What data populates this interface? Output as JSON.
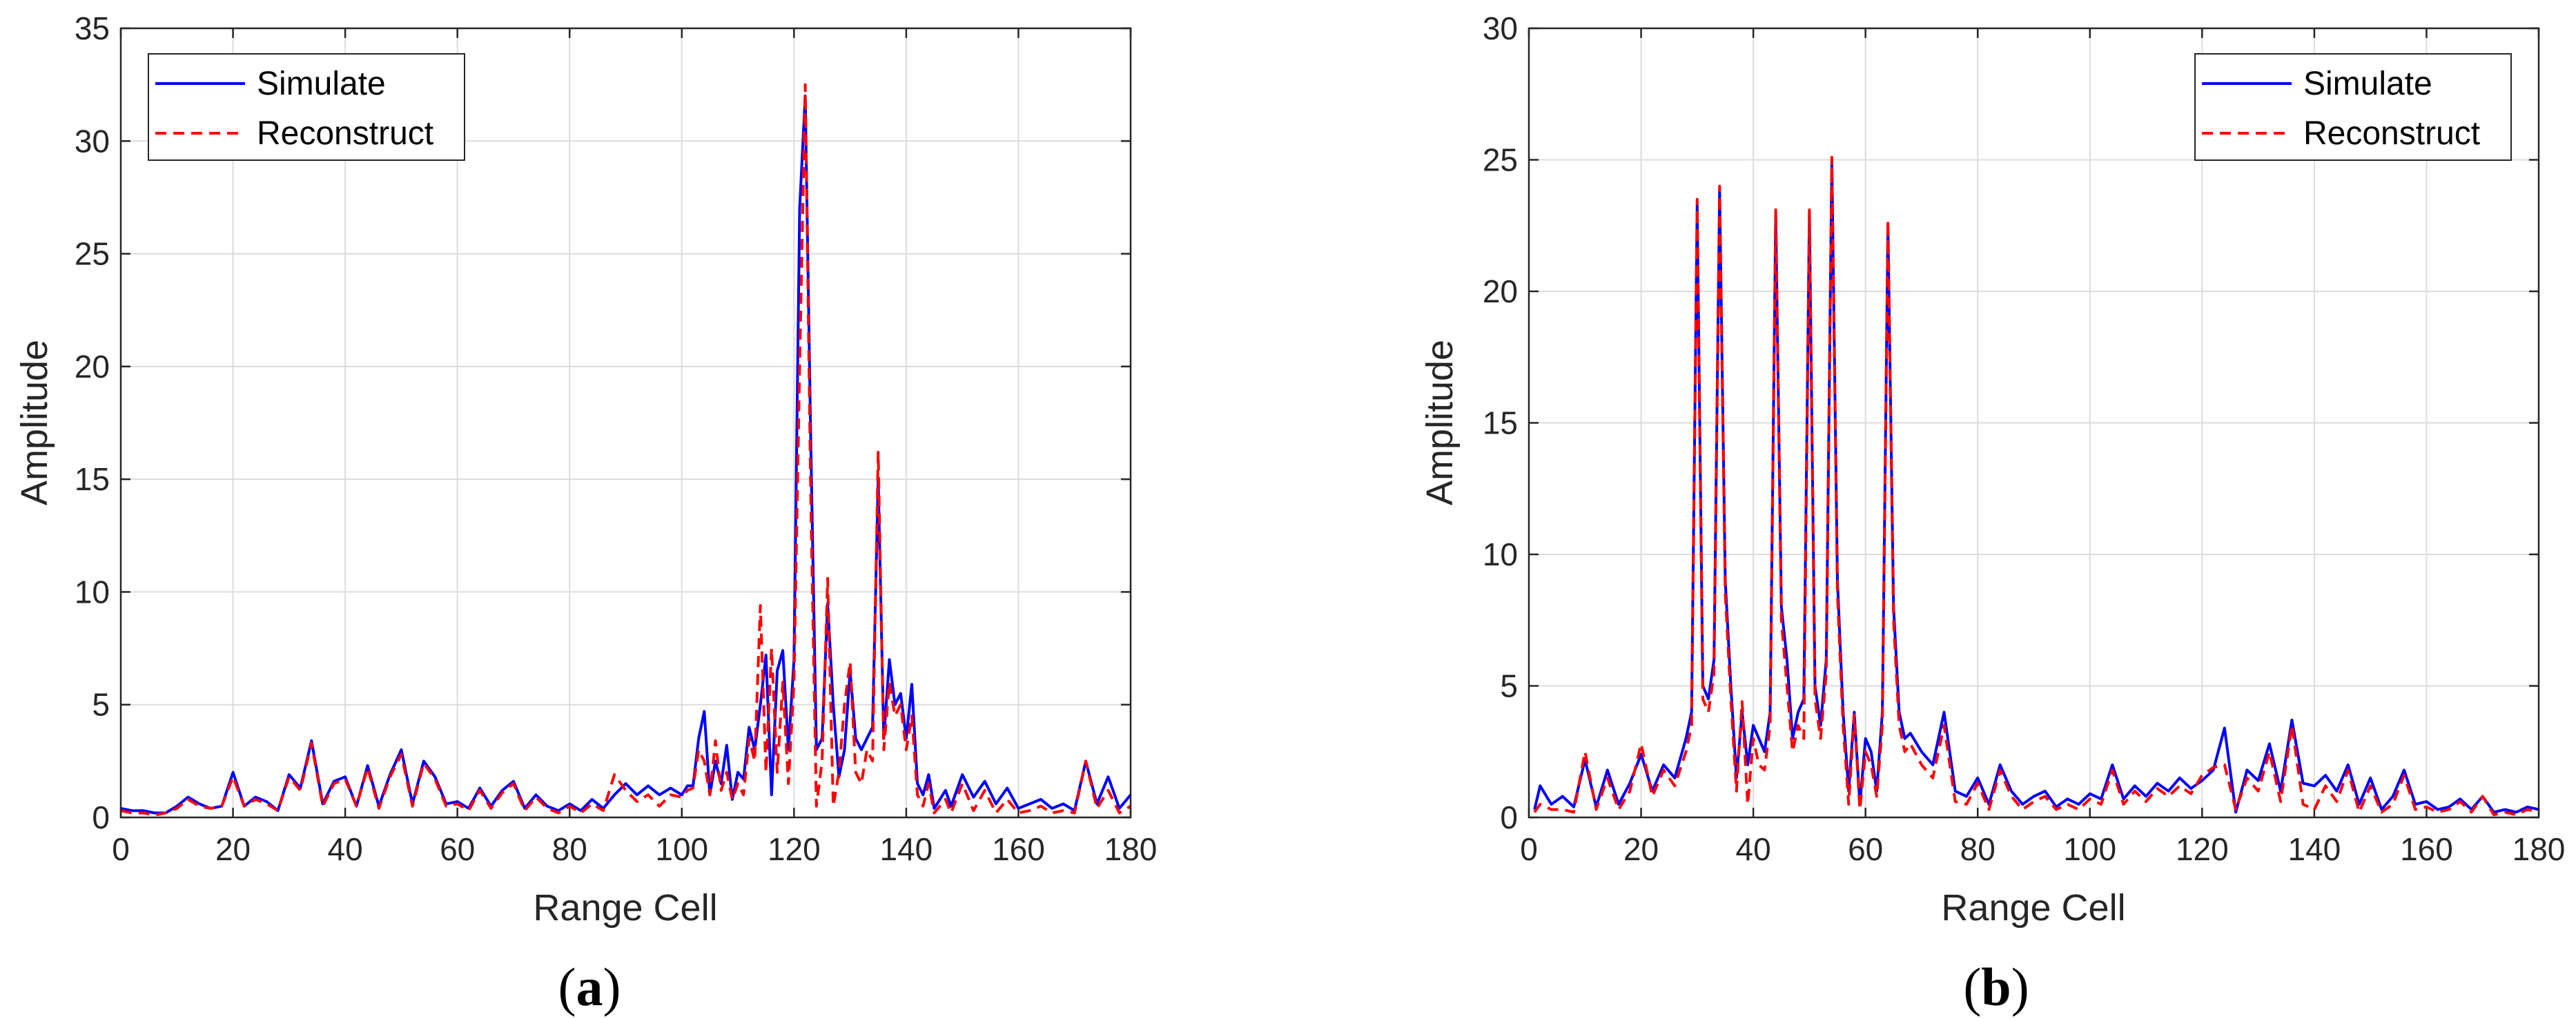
{
  "chart_data": [
    {
      "type": "line",
      "caption_letter": "a",
      "title": "",
      "xlabel": "Range Cell",
      "ylabel": "Amplitude",
      "xlim": [
        0,
        180
      ],
      "ylim": [
        0,
        35
      ],
      "xticks": [
        0,
        20,
        40,
        60,
        80,
        100,
        120,
        140,
        160,
        180
      ],
      "yticks": [
        0,
        5,
        10,
        15,
        20,
        25,
        30,
        35
      ],
      "grid": true,
      "legend_position": "top-left",
      "x": [
        0,
        2,
        4,
        6,
        8,
        10,
        12,
        14,
        16,
        18,
        20,
        22,
        24,
        26,
        28,
        30,
        32,
        34,
        36,
        38,
        40,
        42,
        44,
        46,
        48,
        50,
        52,
        54,
        56,
        58,
        60,
        62,
        64,
        66,
        68,
        70,
        72,
        74,
        76,
        78,
        80,
        82,
        84,
        86,
        88,
        90,
        92,
        94,
        96,
        98,
        100,
        101,
        102,
        103,
        104,
        105,
        106,
        107,
        108,
        109,
        110,
        111,
        112,
        113,
        114,
        115,
        116,
        117,
        118,
        119,
        120,
        121,
        122,
        123,
        124,
        125,
        126,
        127,
        128,
        129,
        130,
        131,
        132,
        133,
        134,
        135,
        136,
        137,
        138,
        139,
        140,
        141,
        142,
        143,
        144,
        145,
        146,
        147,
        148,
        150,
        152,
        154,
        156,
        158,
        160,
        162,
        164,
        166,
        168,
        170,
        172,
        174,
        176,
        178,
        180
      ],
      "series": [
        {
          "name": "Simulate",
          "color": "#0000ff",
          "style": "solid",
          "values": [
            0.4,
            0.3,
            0.3,
            0.2,
            0.2,
            0.5,
            0.9,
            0.6,
            0.4,
            0.5,
            2.0,
            0.5,
            0.9,
            0.7,
            0.3,
            1.9,
            1.3,
            3.4,
            0.6,
            1.6,
            1.8,
            0.5,
            2.3,
            0.5,
            1.9,
            3.0,
            0.6,
            2.5,
            1.8,
            0.6,
            0.7,
            0.4,
            1.3,
            0.5,
            1.2,
            1.6,
            0.4,
            1.0,
            0.5,
            0.3,
            0.6,
            0.3,
            0.8,
            0.4,
            1.0,
            1.5,
            1.0,
            1.4,
            1.0,
            1.3,
            1.0,
            1.4,
            1.4,
            3.5,
            4.7,
            1.0,
            2.5,
            1.5,
            3.2,
            0.8,
            2.0,
            1.7,
            4.0,
            3.0,
            5.0,
            7.2,
            1.0,
            6.5,
            7.4,
            3.0,
            7.0,
            27.0,
            32.0,
            16.5,
            3.0,
            3.5,
            9.5,
            5.0,
            1.8,
            3.0,
            6.5,
            3.5,
            3.0,
            3.5,
            4.0,
            15.0,
            3.5,
            7.0,
            5.0,
            5.5,
            3.5,
            5.9,
            1.5,
            1.0,
            1.9,
            0.4,
            0.8,
            1.2,
            0.5,
            1.9,
            0.9,
            1.6,
            0.6,
            1.3,
            0.4,
            0.6,
            0.8,
            0.4,
            0.6,
            0.3,
            2.5,
            0.6,
            1.8,
            0.4,
            1.0
          ]
        },
        {
          "name": "Reconstruct",
          "color": "#ff0000",
          "style": "dashed",
          "values": [
            0.3,
            0.2,
            0.2,
            0.1,
            0.2,
            0.4,
            0.8,
            0.5,
            0.4,
            0.5,
            1.8,
            0.5,
            0.8,
            0.6,
            0.3,
            1.8,
            1.2,
            3.3,
            0.5,
            1.5,
            1.7,
            0.5,
            2.2,
            0.4,
            1.8,
            2.8,
            0.5,
            2.4,
            1.7,
            0.5,
            0.6,
            0.3,
            1.2,
            0.4,
            1.1,
            1.5,
            0.3,
            0.9,
            0.4,
            0.2,
            0.5,
            0.2,
            0.6,
            0.3,
            1.9,
            1.2,
            0.7,
            1.0,
            0.5,
            1.0,
            0.9,
            1.2,
            1.3,
            3.0,
            2.5,
            1.0,
            3.4,
            1.2,
            2.0,
            0.8,
            1.5,
            1.0,
            3.5,
            2.5,
            9.4,
            2.0,
            7.5,
            2.0,
            6.0,
            1.5,
            6.0,
            20.0,
            32.5,
            14.0,
            0.5,
            2.5,
            10.6,
            0.5,
            2.0,
            5.0,
            6.9,
            2.0,
            1.5,
            3.0,
            2.5,
            16.2,
            3.0,
            6.0,
            4.5,
            5.0,
            3.0,
            4.5,
            1.0,
            0.5,
            1.5,
            0.2,
            0.5,
            0.8,
            0.2,
            1.5,
            0.3,
            1.2,
            0.2,
            0.8,
            0.2,
            0.3,
            0.5,
            0.2,
            0.3,
            0.2,
            2.5,
            0.4,
            1.2,
            0.2,
            0.5
          ]
        }
      ]
    },
    {
      "type": "line",
      "caption_letter": "b",
      "title": "",
      "xlabel": "Range Cell",
      "ylabel": "Amplitude",
      "xlim": [
        0,
        180
      ],
      "ylim": [
        0,
        30
      ],
      "xticks": [
        0,
        20,
        40,
        60,
        80,
        100,
        120,
        140,
        160,
        180
      ],
      "yticks": [
        0,
        5,
        10,
        15,
        20,
        25,
        30
      ],
      "grid": true,
      "legend_position": "top-right",
      "x": [
        1,
        2,
        4,
        6,
        8,
        10,
        12,
        14,
        16,
        18,
        20,
        22,
        24,
        26,
        28,
        29,
        30,
        31,
        32,
        33,
        34,
        35,
        36,
        37,
        38,
        39,
        40,
        41,
        42,
        43,
        44,
        45,
        46,
        47,
        48,
        49,
        50,
        51,
        52,
        53,
        54,
        55,
        56,
        57,
        58,
        59,
        60,
        61,
        62,
        63,
        64,
        65,
        66,
        67,
        68,
        70,
        72,
        74,
        76,
        78,
        80,
        82,
        84,
        86,
        88,
        90,
        92,
        94,
        96,
        98,
        100,
        102,
        104,
        106,
        108,
        110,
        112,
        114,
        116,
        118,
        120,
        122,
        124,
        126,
        128,
        130,
        132,
        134,
        136,
        138,
        140,
        142,
        144,
        146,
        148,
        150,
        152,
        154,
        156,
        158,
        160,
        162,
        164,
        166,
        168,
        170,
        172,
        174,
        176,
        178,
        180
      ],
      "series": [
        {
          "name": "Simulate",
          "color": "#0000ff",
          "style": "solid",
          "values": [
            0.3,
            1.2,
            0.5,
            0.8,
            0.4,
            2.2,
            0.4,
            1.8,
            0.5,
            1.3,
            2.4,
            1.0,
            2.0,
            1.5,
            3.0,
            4.0,
            23.3,
            5.0,
            4.5,
            6.0,
            23.8,
            9.0,
            5.0,
            1.5,
            4.0,
            2.0,
            3.5,
            3.0,
            2.5,
            4.0,
            23.0,
            8.0,
            6.0,
            3.0,
            4.0,
            4.5,
            23.0,
            5.0,
            3.5,
            6.0,
            25.0,
            9.0,
            4.0,
            1.0,
            4.0,
            0.5,
            3.0,
            2.5,
            1.0,
            4.0,
            22.5,
            8.0,
            4.0,
            3.0,
            3.2,
            2.5,
            2.0,
            4.0,
            1.0,
            0.8,
            1.5,
            0.5,
            2.0,
            1.0,
            0.5,
            0.8,
            1.0,
            0.4,
            0.7,
            0.5,
            0.9,
            0.7,
            2.0,
            0.7,
            1.2,
            0.8,
            1.3,
            1.0,
            1.5,
            1.1,
            1.4,
            1.8,
            3.4,
            0.2,
            1.8,
            1.4,
            2.8,
            1.0,
            3.7,
            1.3,
            1.2,
            1.6,
            1.0,
            2.0,
            0.5,
            1.5,
            0.3,
            0.8,
            1.8,
            0.5,
            0.6,
            0.3,
            0.4,
            0.7,
            0.3,
            0.8,
            0.2,
            0.3,
            0.2,
            0.4,
            0.3
          ]
        },
        {
          "name": "Reconstruct",
          "color": "#ff0000",
          "style": "dashed",
          "values": [
            0.2,
            0.5,
            0.3,
            0.3,
            0.2,
            2.5,
            0.3,
            1.5,
            0.3,
            1.0,
            2.8,
            0.8,
            1.8,
            1.2,
            2.5,
            3.5,
            23.5,
            4.5,
            4.0,
            5.5,
            24.0,
            8.5,
            4.5,
            1.0,
            4.4,
            0.5,
            3.0,
            2.0,
            1.8,
            3.5,
            23.1,
            7.5,
            5.0,
            2.5,
            3.5,
            3.0,
            23.1,
            4.5,
            3.0,
            5.5,
            25.1,
            8.5,
            3.5,
            0.5,
            3.9,
            0.3,
            2.5,
            2.0,
            0.8,
            3.5,
            22.7,
            7.5,
            3.5,
            2.5,
            2.8,
            2.0,
            1.5,
            3.5,
            0.6,
            0.5,
            1.3,
            0.3,
            1.8,
            0.8,
            0.3,
            0.6,
            0.8,
            0.3,
            0.5,
            0.3,
            0.7,
            0.5,
            1.8,
            0.5,
            1.0,
            0.6,
            1.1,
            0.8,
            1.2,
            0.9,
            1.6,
            1.9,
            2.0,
            0.3,
            1.5,
            1.0,
            2.5,
            0.6,
            3.5,
            0.5,
            0.3,
            1.2,
            0.6,
            1.8,
            0.2,
            1.2,
            0.2,
            0.5,
            1.6,
            0.3,
            0.4,
            0.2,
            0.3,
            0.6,
            0.2,
            0.8,
            0.1,
            0.2,
            0.1,
            0.3,
            0.2
          ]
        }
      ]
    }
  ]
}
